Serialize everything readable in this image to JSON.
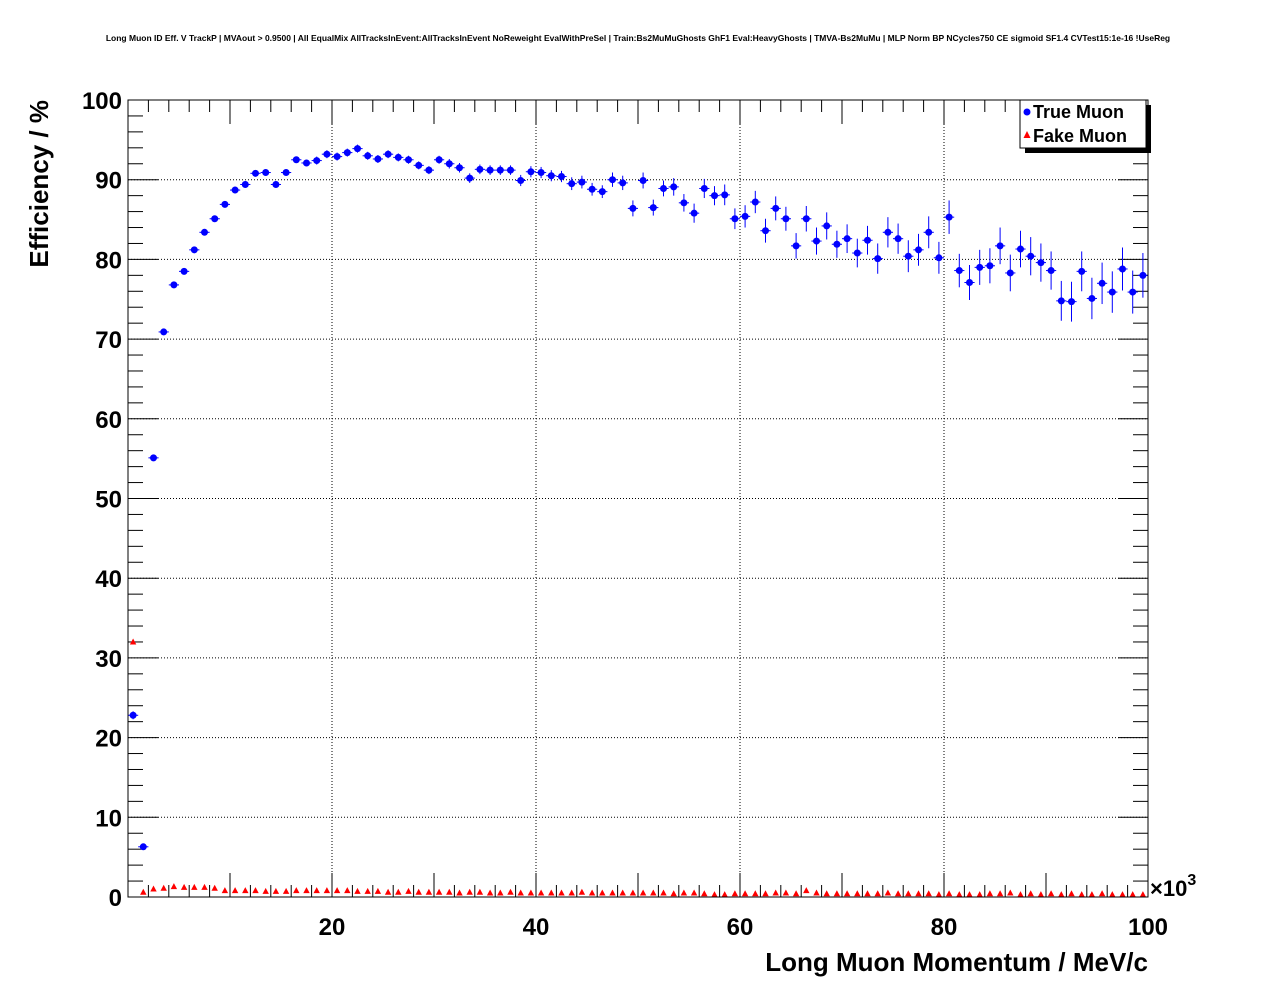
{
  "chart_data": {
    "type": "scatter",
    "title": "Long Muon ID Eff. V TrackP | MVAout > 0.9500 | All EqualMix AllTracksInEvent:AllTracksInEvent NoReweight EvalWithPreSel | Train:Bs2MuMuGhosts GhF1 Eval:HeavyGhosts | TMVA-Bs2MuMu | MLP Norm BP NCycles750 CE sigmoid SF1.4 CVTest15:1e-16 !UseReg",
    "xlabel": "Long Muon Momentum / MeV/c",
    "ylabel": "Efficiency / %",
    "x_multiplier": "×10",
    "x_multiplier_exp": "3",
    "xlim": [
      0,
      100
    ],
    "ylim": [
      0,
      100
    ],
    "x_ticks": [
      20,
      40,
      60,
      80,
      100
    ],
    "y_ticks": [
      0,
      10,
      20,
      30,
      40,
      50,
      60,
      70,
      80,
      90,
      100
    ],
    "grid": true,
    "legend_position": "top-right",
    "x": [
      0.5,
      1.5,
      2.5,
      3.5,
      4.5,
      5.5,
      6.5,
      7.5,
      8.5,
      9.5,
      10.5,
      11.5,
      12.5,
      13.5,
      14.5,
      15.5,
      16.5,
      17.5,
      18.5,
      19.5,
      20.5,
      21.5,
      22.5,
      23.5,
      24.5,
      25.5,
      26.5,
      27.5,
      28.5,
      29.5,
      30.5,
      31.5,
      32.5,
      33.5,
      34.5,
      35.5,
      36.5,
      37.5,
      38.5,
      39.5,
      40.5,
      41.5,
      42.5,
      43.5,
      44.5,
      45.5,
      46.5,
      47.5,
      48.5,
      49.5,
      50.5,
      51.5,
      52.5,
      53.5,
      54.5,
      55.5,
      56.5,
      57.5,
      58.5,
      59.5,
      60.5,
      61.5,
      62.5,
      63.5,
      64.5,
      65.5,
      66.5,
      67.5,
      68.5,
      69.5,
      70.5,
      71.5,
      72.5,
      73.5,
      74.5,
      75.5,
      76.5,
      77.5,
      78.5,
      79.5,
      80.5,
      81.5,
      82.5,
      83.5,
      84.5,
      85.5,
      86.5,
      87.5,
      88.5,
      89.5,
      90.5,
      91.5,
      92.5,
      93.5,
      94.5,
      95.5,
      96.5,
      97.5,
      98.5,
      99.5
    ],
    "series": [
      {
        "name": "True Muon",
        "color": "#0000ff",
        "marker": "circle",
        "values": [
          22.8,
          6.3,
          55.1,
          70.9,
          76.8,
          78.5,
          81.2,
          83.4,
          85.1,
          86.9,
          88.7,
          89.4,
          90.8,
          90.9,
          89.4,
          90.9,
          92.5,
          92.1,
          92.4,
          93.2,
          92.9,
          93.4,
          93.9,
          93.0,
          92.6,
          93.2,
          92.8,
          92.5,
          91.8,
          91.2,
          92.5,
          92.0,
          91.5,
          90.2,
          91.3,
          91.2,
          91.2,
          91.2,
          89.9,
          91.0,
          90.9,
          90.5,
          90.4,
          89.5,
          89.7,
          88.8,
          88.5,
          90.0,
          89.6,
          86.4,
          89.9,
          86.5,
          88.9,
          89.1,
          87.1,
          85.8,
          88.9,
          88.0,
          88.1,
          85.1,
          85.4,
          87.2,
          83.6,
          86.4,
          85.1,
          81.7,
          85.1,
          82.3,
          84.2,
          81.9,
          82.6,
          80.8,
          82.4,
          80.1,
          83.4,
          82.6,
          80.4,
          81.2,
          83.4,
          80.2,
          85.3,
          78.6,
          77.1,
          79.0,
          79.2,
          81.7,
          78.3,
          81.3,
          80.4,
          79.6,
          78.6,
          74.8,
          74.7,
          78.5,
          75.1,
          77.0,
          75.9,
          78.8,
          75.9,
          78.0
        ],
        "errors": [
          0.5,
          0.3,
          0.4,
          0.4,
          0.4,
          0.4,
          0.4,
          0.4,
          0.4,
          0.4,
          0.4,
          0.4,
          0.4,
          0.4,
          0.4,
          0.4,
          0.4,
          0.4,
          0.5,
          0.5,
          0.5,
          0.5,
          0.5,
          0.5,
          0.5,
          0.5,
          0.5,
          0.5,
          0.5,
          0.5,
          0.5,
          0.6,
          0.6,
          0.6,
          0.6,
          0.6,
          0.6,
          0.6,
          0.7,
          0.7,
          0.7,
          0.7,
          0.7,
          0.8,
          0.8,
          0.8,
          0.8,
          0.9,
          0.9,
          1.0,
          1.0,
          1.0,
          1.0,
          1.1,
          1.1,
          1.2,
          1.2,
          1.2,
          1.3,
          1.3,
          1.4,
          1.4,
          1.5,
          1.5,
          1.5,
          1.6,
          1.6,
          1.7,
          1.7,
          1.7,
          1.8,
          1.8,
          1.8,
          1.9,
          1.9,
          1.9,
          2.0,
          2.0,
          2.0,
          2.0,
          2.1,
          2.1,
          2.2,
          2.2,
          2.2,
          2.3,
          2.3,
          2.3,
          2.4,
          2.4,
          2.4,
          2.5,
          2.5,
          2.5,
          2.6,
          2.6,
          2.6,
          2.7,
          2.7,
          2.8
        ]
      },
      {
        "name": "Fake Muon",
        "color": "#ff0000",
        "marker": "triangle",
        "values": [
          32.0,
          0.6,
          1.0,
          1.1,
          1.3,
          1.2,
          1.2,
          1.2,
          1.1,
          0.8,
          0.8,
          0.8,
          0.8,
          0.7,
          0.7,
          0.7,
          0.8,
          0.8,
          0.8,
          0.8,
          0.8,
          0.8,
          0.7,
          0.7,
          0.7,
          0.6,
          0.6,
          0.7,
          0.6,
          0.6,
          0.6,
          0.6,
          0.5,
          0.6,
          0.6,
          0.5,
          0.5,
          0.6,
          0.5,
          0.5,
          0.5,
          0.5,
          0.5,
          0.5,
          0.6,
          0.5,
          0.5,
          0.5,
          0.5,
          0.5,
          0.5,
          0.5,
          0.5,
          0.4,
          0.5,
          0.5,
          0.4,
          0.3,
          0.3,
          0.4,
          0.4,
          0.4,
          0.4,
          0.5,
          0.5,
          0.4,
          0.8,
          0.5,
          0.4,
          0.4,
          0.4,
          0.4,
          0.4,
          0.4,
          0.5,
          0.4,
          0.4,
          0.4,
          0.4,
          0.3,
          0.4,
          0.3,
          0.3,
          0.3,
          0.4,
          0.4,
          0.5,
          0.3,
          0.4,
          0.3,
          0.4,
          0.3,
          0.4,
          0.3,
          0.3,
          0.4,
          0.3,
          0.3,
          0.3,
          0.3
        ]
      }
    ]
  }
}
